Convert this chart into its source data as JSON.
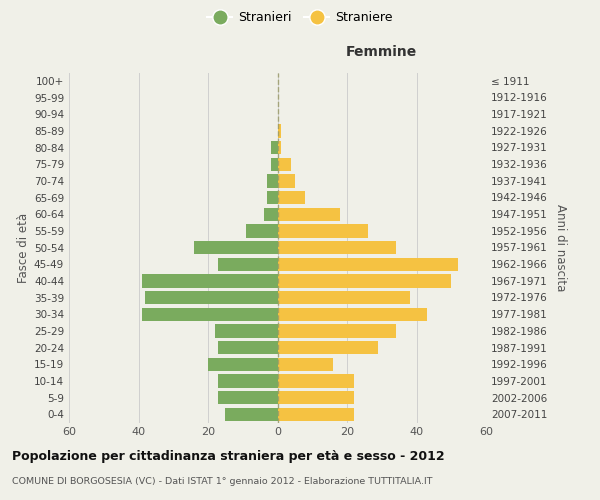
{
  "age_groups": [
    "0-4",
    "5-9",
    "10-14",
    "15-19",
    "20-24",
    "25-29",
    "30-34",
    "35-39",
    "40-44",
    "45-49",
    "50-54",
    "55-59",
    "60-64",
    "65-69",
    "70-74",
    "75-79",
    "80-84",
    "85-89",
    "90-94",
    "95-99",
    "100+"
  ],
  "birth_years": [
    "2007-2011",
    "2002-2006",
    "1997-2001",
    "1992-1996",
    "1987-1991",
    "1982-1986",
    "1977-1981",
    "1972-1976",
    "1967-1971",
    "1962-1966",
    "1957-1961",
    "1952-1956",
    "1947-1951",
    "1942-1946",
    "1937-1941",
    "1932-1936",
    "1927-1931",
    "1922-1926",
    "1917-1921",
    "1912-1916",
    "≤ 1911"
  ],
  "males": [
    15,
    17,
    17,
    20,
    17,
    18,
    39,
    38,
    39,
    17,
    24,
    9,
    4,
    3,
    3,
    2,
    2,
    0,
    0,
    0,
    0
  ],
  "females": [
    22,
    22,
    22,
    16,
    29,
    34,
    43,
    38,
    50,
    52,
    34,
    26,
    18,
    8,
    5,
    4,
    1,
    1,
    0,
    0,
    0
  ],
  "male_color": "#7aab5e",
  "female_color": "#f5c242",
  "background_color": "#f0f0e8",
  "grid_color": "#cccccc",
  "center_line_color": "#999966",
  "xlim": 60,
  "title": "Popolazione per cittadinanza straniera per età e sesso - 2012",
  "subtitle": "COMUNE DI BORGOSESIA (VC) - Dati ISTAT 1° gennaio 2012 - Elaborazione TUTTITALIA.IT",
  "xlabel_right": "Femmine",
  "ylabel_left": "Fasce di età",
  "ylabel_right": "Anni di nascita",
  "legend_stranieri": "Stranieri",
  "legend_straniere": "Straniere"
}
